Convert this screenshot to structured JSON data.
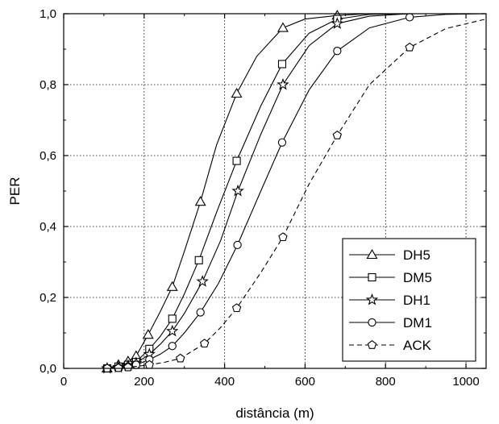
{
  "chart_data": {
    "type": "line",
    "xlabel": "distância (m)",
    "ylabel": "PER",
    "xlim": [
      0,
      1050
    ],
    "ylim": [
      0,
      1.0
    ],
    "xticks": [
      0,
      200,
      400,
      600,
      800,
      1000
    ],
    "xtick_labels": [
      "0",
      "200",
      "400",
      "600",
      "800",
      "1000"
    ],
    "yticks": [
      0,
      0.2,
      0.4,
      0.6,
      0.8,
      1.0
    ],
    "ytick_labels": [
      "0,0",
      "0,2",
      "0,4",
      "0,6",
      "0,8",
      "1,0"
    ],
    "grid": "dotted",
    "legend_position": "bottom-right",
    "series": [
      {
        "name": "DH5",
        "marker": "triangle",
        "dash": "solid",
        "x": [
          108,
          136,
          160,
          180,
          210,
          270,
          340,
          430,
          545,
          680
        ],
        "y": [
          0.0,
          0.01,
          0.02,
          0.035,
          0.095,
          0.23,
          0.47,
          0.775,
          0.96,
          0.995
        ],
        "curve_x": [
          90,
          108,
          136,
          160,
          180,
          210,
          240,
          270,
          300,
          340,
          380,
          430,
          480,
          545,
          600,
          680,
          760,
          860,
          1050
        ],
        "curve_y": [
          0.0,
          0.0,
          0.01,
          0.02,
          0.035,
          0.095,
          0.16,
          0.23,
          0.33,
          0.47,
          0.63,
          0.775,
          0.88,
          0.96,
          0.985,
          0.995,
          1.0,
          1.0,
          1.0
        ]
      },
      {
        "name": "DM5",
        "marker": "square",
        "dash": "solid",
        "x": [
          108,
          136,
          160,
          180,
          213,
          270,
          336,
          430,
          543,
          680
        ],
        "y": [
          0.0,
          0.005,
          0.01,
          0.018,
          0.055,
          0.14,
          0.305,
          0.585,
          0.858,
          0.985
        ],
        "curve_x": [
          90,
          108,
          136,
          160,
          180,
          213,
          240,
          270,
          300,
          336,
          380,
          430,
          490,
          543,
          610,
          680,
          760,
          860,
          1050
        ],
        "curve_y": [
          0.0,
          0.0,
          0.005,
          0.01,
          0.018,
          0.055,
          0.09,
          0.14,
          0.21,
          0.305,
          0.44,
          0.585,
          0.74,
          0.858,
          0.945,
          0.985,
          0.998,
          1.0,
          1.0
        ]
      },
      {
        "name": "DH1",
        "marker": "star",
        "dash": "solid",
        "x": [
          108,
          136,
          160,
          180,
          213,
          270,
          345,
          433,
          545,
          680
        ],
        "y": [
          0.0,
          0.003,
          0.008,
          0.015,
          0.04,
          0.105,
          0.245,
          0.5,
          0.8,
          0.972
        ],
        "curve_x": [
          90,
          108,
          136,
          160,
          180,
          213,
          240,
          270,
          300,
          345,
          390,
          433,
          490,
          545,
          610,
          680,
          760,
          860,
          1050
        ],
        "curve_y": [
          0.0,
          0.0,
          0.003,
          0.008,
          0.015,
          0.04,
          0.068,
          0.105,
          0.155,
          0.245,
          0.36,
          0.5,
          0.66,
          0.8,
          0.91,
          0.972,
          0.993,
          1.0,
          1.0
        ]
      },
      {
        "name": "DM1",
        "marker": "circle",
        "dash": "solid",
        "x": [
          108,
          136,
          160,
          180,
          213,
          270,
          340,
          432,
          543,
          680,
          860
        ],
        "y": [
          0.0,
          0.002,
          0.005,
          0.01,
          0.025,
          0.063,
          0.158,
          0.348,
          0.637,
          0.895,
          0.99
        ],
        "curve_x": [
          90,
          108,
          136,
          160,
          180,
          213,
          240,
          270,
          300,
          340,
          385,
          432,
          490,
          543,
          610,
          680,
          760,
          860,
          950,
          1050
        ],
        "curve_y": [
          0.0,
          0.0,
          0.002,
          0.005,
          0.01,
          0.025,
          0.04,
          0.063,
          0.1,
          0.158,
          0.24,
          0.348,
          0.5,
          0.637,
          0.785,
          0.895,
          0.96,
          0.99,
          0.998,
          1.0
        ]
      },
      {
        "name": "ACK",
        "marker": "pentagon",
        "dash": "dashed",
        "x": [
          108,
          136,
          160,
          213,
          290,
          350,
          430,
          545,
          680,
          860
        ],
        "y": [
          0.0,
          0.001,
          0.003,
          0.01,
          0.028,
          0.07,
          0.17,
          0.37,
          0.657,
          0.905
        ],
        "curve_x": [
          90,
          108,
          136,
          160,
          213,
          250,
          290,
          350,
          390,
          430,
          490,
          545,
          610,
          680,
          760,
          860,
          950,
          1050
        ],
        "curve_y": [
          0.0,
          0.0,
          0.001,
          0.003,
          0.01,
          0.017,
          0.028,
          0.07,
          0.115,
          0.17,
          0.27,
          0.37,
          0.52,
          0.657,
          0.8,
          0.905,
          0.958,
          0.985
        ]
      }
    ]
  }
}
